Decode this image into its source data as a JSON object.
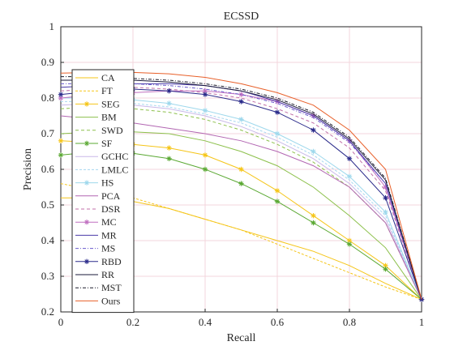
{
  "chart_data": {
    "type": "line",
    "title": "ECSSD",
    "xlabel": "Recall",
    "ylabel": "Precision",
    "xlim": [
      0,
      1
    ],
    "ylim": [
      0.2,
      1
    ],
    "xticks": [
      "0",
      "0.2",
      "0.4",
      "0.6",
      "0.8",
      "1"
    ],
    "yticks": [
      "0.2",
      "0.3",
      "0.4",
      "0.5",
      "0.6",
      "0.7",
      "0.8",
      "0.9",
      "1"
    ],
    "grid": true,
    "legend_position": "left",
    "series": [
      {
        "name": "CA",
        "color": "#f5c518",
        "dash": "",
        "marker": "",
        "x": [
          0.0,
          0.1,
          0.2,
          0.3,
          0.4,
          0.5,
          0.6,
          0.7,
          0.8,
          0.9,
          1.0
        ],
        "y": [
          0.52,
          0.52,
          0.51,
          0.49,
          0.46,
          0.43,
          0.4,
          0.37,
          0.33,
          0.28,
          0.235
        ]
      },
      {
        "name": "FT",
        "color": "#f5c518",
        "dash": "3,2",
        "marker": "",
        "x": [
          0.0,
          0.1,
          0.2,
          0.3,
          0.4,
          0.5,
          0.6,
          0.7,
          0.8,
          0.9,
          1.0
        ],
        "y": [
          0.56,
          0.54,
          0.52,
          0.49,
          0.46,
          0.43,
          0.39,
          0.35,
          0.31,
          0.27,
          0.235
        ]
      },
      {
        "name": "SEG",
        "color": "#f5c518",
        "dash": "",
        "marker": "star",
        "x": [
          0.0,
          0.1,
          0.2,
          0.3,
          0.4,
          0.5,
          0.6,
          0.7,
          0.8,
          0.9,
          1.0
        ],
        "y": [
          0.68,
          0.675,
          0.67,
          0.66,
          0.64,
          0.6,
          0.54,
          0.47,
          0.4,
          0.33,
          0.235
        ]
      },
      {
        "name": "BM",
        "color": "#8cc04b",
        "dash": "",
        "marker": "",
        "x": [
          0.0,
          0.1,
          0.2,
          0.3,
          0.4,
          0.5,
          0.6,
          0.7,
          0.8,
          0.9,
          1.0
        ],
        "y": [
          0.7,
          0.705,
          0.705,
          0.7,
          0.68,
          0.65,
          0.61,
          0.55,
          0.47,
          0.38,
          0.235
        ]
      },
      {
        "name": "SWD",
        "color": "#8cc04b",
        "dash": "4,3",
        "marker": "",
        "x": [
          0.0,
          0.1,
          0.2,
          0.3,
          0.4,
          0.5,
          0.6,
          0.7,
          0.8,
          0.9,
          1.0
        ],
        "y": [
          0.77,
          0.775,
          0.77,
          0.76,
          0.74,
          0.71,
          0.67,
          0.62,
          0.55,
          0.45,
          0.235
        ]
      },
      {
        "name": "SF",
        "color": "#5aa832",
        "dash": "",
        "marker": "star",
        "x": [
          0.0,
          0.1,
          0.2,
          0.3,
          0.4,
          0.5,
          0.6,
          0.7,
          0.8,
          0.9,
          1.0
        ],
        "y": [
          0.64,
          0.65,
          0.645,
          0.63,
          0.6,
          0.56,
          0.51,
          0.45,
          0.39,
          0.32,
          0.235
        ]
      },
      {
        "name": "GCHC",
        "color": "#c9b8e8",
        "dash": "",
        "marker": "",
        "x": [
          0.0,
          0.1,
          0.2,
          0.3,
          0.4,
          0.5,
          0.6,
          0.7,
          0.8,
          0.9,
          1.0
        ],
        "y": [
          0.78,
          0.785,
          0.78,
          0.77,
          0.75,
          0.72,
          0.68,
          0.63,
          0.56,
          0.46,
          0.235
        ]
      },
      {
        "name": "LMLC",
        "color": "#a7d7f0",
        "dash": "3,2",
        "marker": "",
        "x": [
          0.0,
          0.1,
          0.2,
          0.3,
          0.4,
          0.5,
          0.6,
          0.7,
          0.8,
          0.9,
          1.0
        ],
        "y": [
          0.79,
          0.79,
          0.785,
          0.775,
          0.755,
          0.73,
          0.69,
          0.64,
          0.57,
          0.47,
          0.235
        ]
      },
      {
        "name": "HS",
        "color": "#9ed8ec",
        "dash": "",
        "marker": "star",
        "x": [
          0.0,
          0.1,
          0.2,
          0.3,
          0.4,
          0.5,
          0.6,
          0.7,
          0.8,
          0.9,
          1.0
        ],
        "y": [
          0.8,
          0.8,
          0.795,
          0.785,
          0.765,
          0.74,
          0.7,
          0.65,
          0.58,
          0.48,
          0.235
        ]
      },
      {
        "name": "PCA",
        "color": "#b266b2",
        "dash": "",
        "marker": "",
        "x": [
          0.0,
          0.1,
          0.2,
          0.3,
          0.4,
          0.5,
          0.6,
          0.7,
          0.8,
          0.9,
          1.0
        ],
        "y": [
          0.75,
          0.74,
          0.73,
          0.715,
          0.7,
          0.68,
          0.65,
          0.61,
          0.55,
          0.45,
          0.235
        ]
      },
      {
        "name": "DSR",
        "color": "#c06fa8",
        "dash": "4,3",
        "marker": "",
        "x": [
          0.0,
          0.1,
          0.2,
          0.3,
          0.4,
          0.5,
          0.6,
          0.7,
          0.8,
          0.9,
          1.0
        ],
        "y": [
          0.82,
          0.825,
          0.83,
          0.825,
          0.815,
          0.8,
          0.77,
          0.73,
          0.66,
          0.54,
          0.235
        ]
      },
      {
        "name": "MC",
        "color": "#c06fc0",
        "dash": "",
        "marker": "star",
        "x": [
          0.0,
          0.1,
          0.2,
          0.3,
          0.4,
          0.5,
          0.6,
          0.7,
          0.8,
          0.9,
          1.0
        ],
        "y": [
          0.8,
          0.81,
          0.815,
          0.82,
          0.82,
          0.81,
          0.79,
          0.75,
          0.68,
          0.55,
          0.235
        ]
      },
      {
        "name": "MR",
        "color": "#4a3aa8",
        "dash": "",
        "marker": "",
        "x": [
          0.0,
          0.1,
          0.2,
          0.3,
          0.4,
          0.5,
          0.6,
          0.7,
          0.8,
          0.9,
          1.0
        ],
        "y": [
          0.83,
          0.835,
          0.84,
          0.84,
          0.835,
          0.82,
          0.79,
          0.75,
          0.68,
          0.56,
          0.235
        ]
      },
      {
        "name": "MS",
        "color": "#6a5acd",
        "dash": "4,2,1,2",
        "marker": "",
        "x": [
          0.0,
          0.1,
          0.2,
          0.3,
          0.4,
          0.5,
          0.6,
          0.7,
          0.8,
          0.9,
          1.0
        ],
        "y": [
          0.84,
          0.84,
          0.84,
          0.835,
          0.825,
          0.81,
          0.785,
          0.745,
          0.675,
          0.56,
          0.235
        ]
      },
      {
        "name": "RBD",
        "color": "#2a2a8a",
        "dash": "",
        "marker": "star",
        "x": [
          0.0,
          0.1,
          0.2,
          0.3,
          0.4,
          0.5,
          0.6,
          0.7,
          0.8,
          0.9,
          1.0
        ],
        "y": [
          0.81,
          0.82,
          0.825,
          0.82,
          0.81,
          0.79,
          0.76,
          0.71,
          0.63,
          0.52,
          0.235
        ]
      },
      {
        "name": "RR",
        "color": "#1a1a3a",
        "dash": "",
        "marker": "",
        "x": [
          0.0,
          0.1,
          0.2,
          0.3,
          0.4,
          0.5,
          0.6,
          0.7,
          0.8,
          0.9,
          1.0
        ],
        "y": [
          0.85,
          0.85,
          0.85,
          0.845,
          0.835,
          0.82,
          0.795,
          0.755,
          0.685,
          0.57,
          0.235
        ]
      },
      {
        "name": "MST",
        "color": "#1a1a2a",
        "dash": "4,2,1,2",
        "marker": "",
        "x": [
          0.0,
          0.1,
          0.2,
          0.3,
          0.4,
          0.5,
          0.6,
          0.7,
          0.8,
          0.9,
          1.0
        ],
        "y": [
          0.86,
          0.86,
          0.855,
          0.85,
          0.84,
          0.825,
          0.8,
          0.76,
          0.69,
          0.575,
          0.235
        ]
      },
      {
        "name": "Ours",
        "color": "#e8602a",
        "dash": "",
        "marker": "",
        "x": [
          0.0,
          0.1,
          0.2,
          0.3,
          0.4,
          0.5,
          0.6,
          0.7,
          0.8,
          0.9,
          1.0
        ],
        "y": [
          0.87,
          0.872,
          0.872,
          0.868,
          0.858,
          0.84,
          0.815,
          0.78,
          0.71,
          0.6,
          0.235
        ]
      }
    ]
  }
}
